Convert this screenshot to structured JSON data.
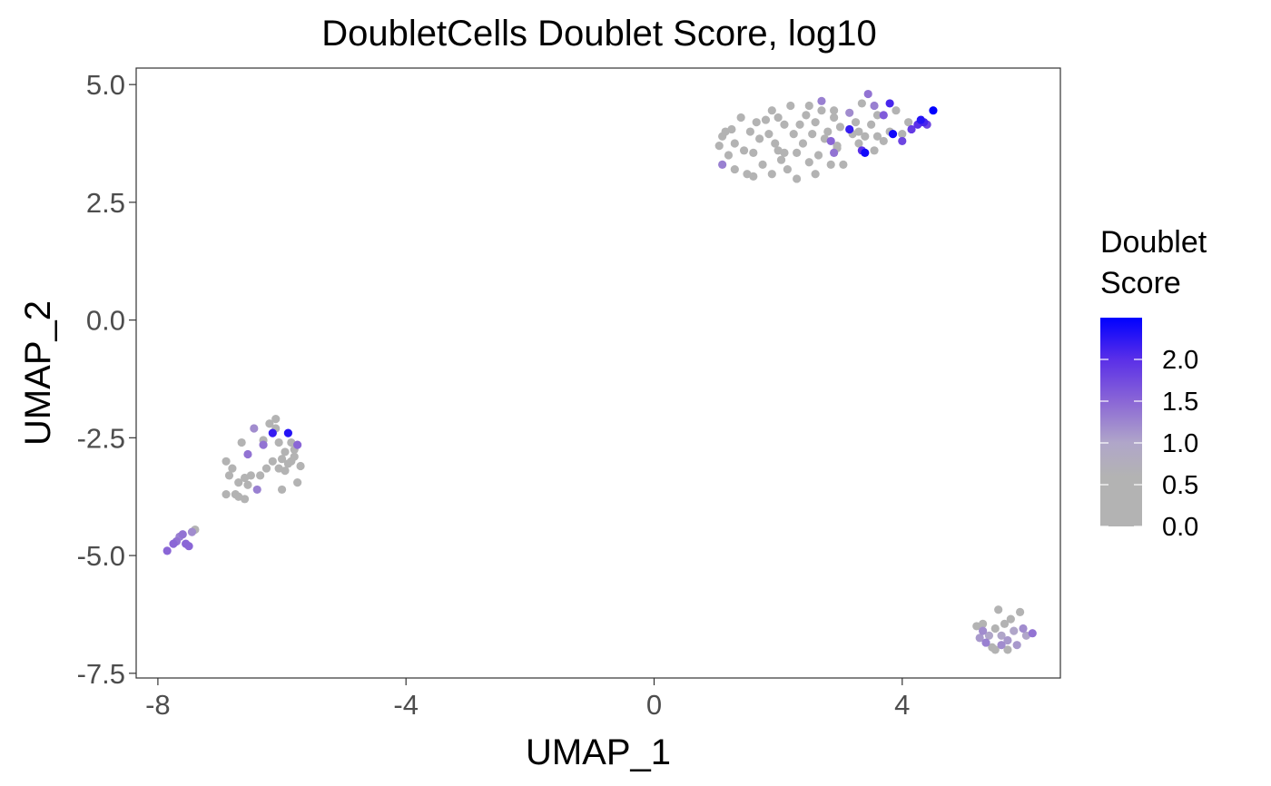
{
  "chart_data": {
    "type": "scatter",
    "title": "DoubletCells Doublet Score, log10",
    "xlabel": "UMAP_1",
    "ylabel": "UMAP_2",
    "xlim": [
      -8.35,
      6.55
    ],
    "ylim": [
      -7.6,
      5.35
    ],
    "x_ticks": [
      -8,
      -4,
      0,
      4
    ],
    "x_tick_labels": [
      "-8",
      "-4",
      "0",
      "4"
    ],
    "y_ticks": [
      5.0,
      2.5,
      0.0,
      -2.5,
      -5.0,
      -7.5
    ],
    "y_tick_labels": [
      "5.0",
      "2.5",
      "0.0",
      "-2.5",
      "-5.0",
      "-7.5"
    ],
    "grid": false,
    "legend": {
      "title": "Doublet Score",
      "title_lines": [
        "Doublet",
        "Score"
      ],
      "position": "right",
      "range": [
        0,
        2.5
      ],
      "ticks": [
        2.0,
        1.5,
        1.0,
        0.5,
        0.0
      ],
      "tick_labels": [
        "2.0",
        "1.5",
        "1.0",
        "0.5",
        "0.0"
      ],
      "color_low": "#b3b3b3",
      "color_high": "#0000ff",
      "gradient_stops": [
        {
          "value": 0.0,
          "color": "#b3b3b3"
        },
        {
          "value": 0.6,
          "color": "#b3b3b3"
        },
        {
          "value": 1.0,
          "color": "#b0a6c9"
        },
        {
          "value": 1.5,
          "color": "#8a66d6"
        },
        {
          "value": 2.0,
          "color": "#5a2fe8"
        },
        {
          "value": 2.5,
          "color": "#0000ff"
        }
      ]
    },
    "points": [
      {
        "x": 1.05,
        "y": 3.7,
        "score": 0.3
      },
      {
        "x": 1.1,
        "y": 3.9,
        "score": 0.3
      },
      {
        "x": 1.15,
        "y": 4.0,
        "score": 0.3
      },
      {
        "x": 1.2,
        "y": 3.5,
        "score": 0.3
      },
      {
        "x": 1.1,
        "y": 3.3,
        "score": 1.3
      },
      {
        "x": 1.3,
        "y": 3.75,
        "score": 0.3
      },
      {
        "x": 1.4,
        "y": 4.3,
        "score": 0.3
      },
      {
        "x": 1.45,
        "y": 3.6,
        "score": 0.3
      },
      {
        "x": 1.5,
        "y": 3.1,
        "score": 0.3
      },
      {
        "x": 1.55,
        "y": 4.0,
        "score": 0.3
      },
      {
        "x": 1.6,
        "y": 3.55,
        "score": 0.3
      },
      {
        "x": 1.65,
        "y": 4.2,
        "score": 0.3
      },
      {
        "x": 1.7,
        "y": 3.85,
        "score": 0.3
      },
      {
        "x": 1.75,
        "y": 3.3,
        "score": 0.3
      },
      {
        "x": 1.8,
        "y": 4.25,
        "score": 0.3
      },
      {
        "x": 1.85,
        "y": 3.95,
        "score": 0.3
      },
      {
        "x": 1.9,
        "y": 3.1,
        "score": 0.3
      },
      {
        "x": 1.95,
        "y": 3.75,
        "score": 0.3
      },
      {
        "x": 2.0,
        "y": 4.3,
        "score": 0.3
      },
      {
        "x": 2.05,
        "y": 3.4,
        "score": 0.3
      },
      {
        "x": 2.1,
        "y": 4.15,
        "score": 0.3
      },
      {
        "x": 2.15,
        "y": 3.2,
        "score": 0.3
      },
      {
        "x": 2.2,
        "y": 4.55,
        "score": 0.3
      },
      {
        "x": 2.25,
        "y": 3.95,
        "score": 0.3
      },
      {
        "x": 2.3,
        "y": 3.55,
        "score": 0.3
      },
      {
        "x": 2.35,
        "y": 4.15,
        "score": 0.3
      },
      {
        "x": 2.4,
        "y": 3.75,
        "score": 0.3
      },
      {
        "x": 2.45,
        "y": 4.35,
        "score": 0.3
      },
      {
        "x": 2.5,
        "y": 3.35,
        "score": 0.3
      },
      {
        "x": 2.55,
        "y": 3.95,
        "score": 0.3
      },
      {
        "x": 2.6,
        "y": 4.2,
        "score": 0.3
      },
      {
        "x": 2.65,
        "y": 3.5,
        "score": 0.3
      },
      {
        "x": 2.7,
        "y": 4.45,
        "score": 0.3
      },
      {
        "x": 2.75,
        "y": 3.85,
        "score": 0.3
      },
      {
        "x": 2.8,
        "y": 4.0,
        "score": 0.3
      },
      {
        "x": 2.85,
        "y": 3.3,
        "score": 0.3
      },
      {
        "x": 2.9,
        "y": 4.3,
        "score": 0.3
      },
      {
        "x": 2.95,
        "y": 3.65,
        "score": 0.3
      },
      {
        "x": 3.0,
        "y": 4.1,
        "score": 0.3
      },
      {
        "x": 3.05,
        "y": 3.3,
        "score": 0.3
      },
      {
        "x": 3.15,
        "y": 4.4,
        "score": 1.2
      },
      {
        "x": 3.2,
        "y": 3.95,
        "score": 0.3
      },
      {
        "x": 3.25,
        "y": 4.2,
        "score": 0.3
      },
      {
        "x": 3.3,
        "y": 3.75,
        "score": 0.3
      },
      {
        "x": 3.35,
        "y": 4.6,
        "score": 0.3
      },
      {
        "x": 3.4,
        "y": 3.9,
        "score": 0.3
      },
      {
        "x": 3.5,
        "y": 4.15,
        "score": 0.3
      },
      {
        "x": 3.55,
        "y": 3.6,
        "score": 0.3
      },
      {
        "x": 3.6,
        "y": 4.35,
        "score": 0.3
      },
      {
        "x": 3.7,
        "y": 3.8,
        "score": 0.3
      },
      {
        "x": 3.8,
        "y": 4.0,
        "score": 0.3
      },
      {
        "x": 3.9,
        "y": 4.45,
        "score": 0.3
      },
      {
        "x": 4.0,
        "y": 3.95,
        "score": 0.3
      },
      {
        "x": 4.1,
        "y": 4.2,
        "score": 0.3
      },
      {
        "x": 1.3,
        "y": 3.2,
        "score": 0.3
      },
      {
        "x": 1.6,
        "y": 3.05,
        "score": 0.3
      },
      {
        "x": 2.0,
        "y": 3.6,
        "score": 0.3
      },
      {
        "x": 2.3,
        "y": 3.0,
        "score": 0.3
      },
      {
        "x": 1.9,
        "y": 4.45,
        "score": 0.3
      },
      {
        "x": 2.6,
        "y": 3.1,
        "score": 0.3
      },
      {
        "x": 2.5,
        "y": 4.55,
        "score": 0.3
      },
      {
        "x": 1.25,
        "y": 4.05,
        "score": 0.3
      },
      {
        "x": 2.85,
        "y": 3.8,
        "score": 1.5
      },
      {
        "x": 2.9,
        "y": 3.55,
        "score": 1.4
      },
      {
        "x": 3.15,
        "y": 4.05,
        "score": 2.2
      },
      {
        "x": 3.35,
        "y": 3.6,
        "score": 2.0
      },
      {
        "x": 3.4,
        "y": 3.55,
        "score": 2.4
      },
      {
        "x": 3.45,
        "y": 4.8,
        "score": 1.4
      },
      {
        "x": 3.55,
        "y": 4.55,
        "score": 1.3
      },
      {
        "x": 3.7,
        "y": 4.35,
        "score": 1.6
      },
      {
        "x": 3.8,
        "y": 4.6,
        "score": 2.1
      },
      {
        "x": 3.85,
        "y": 3.95,
        "score": 2.4
      },
      {
        "x": 4.0,
        "y": 3.8,
        "score": 1.8
      },
      {
        "x": 4.15,
        "y": 4.05,
        "score": 1.9
      },
      {
        "x": 4.25,
        "y": 4.15,
        "score": 2.0
      },
      {
        "x": 4.3,
        "y": 4.25,
        "score": 2.3
      },
      {
        "x": 4.35,
        "y": 4.2,
        "score": 2.1
      },
      {
        "x": 4.4,
        "y": 4.15,
        "score": 1.8
      },
      {
        "x": 4.5,
        "y": 4.45,
        "score": 2.5
      },
      {
        "x": 4.3,
        "y": 4.2,
        "score": 1.6
      },
      {
        "x": 3.3,
        "y": 4.0,
        "score": 0.3
      },
      {
        "x": 2.9,
        "y": 4.45,
        "score": 0.3
      },
      {
        "x": 3.6,
        "y": 3.9,
        "score": 0.3
      },
      {
        "x": 2.7,
        "y": 4.65,
        "score": 1.3
      },
      {
        "x": 2.95,
        "y": 3.7,
        "score": 0.3
      },
      {
        "x": 2.1,
        "y": 3.55,
        "score": 0.3
      },
      {
        "x": -7.85,
        "y": -4.9,
        "score": 1.5
      },
      {
        "x": -7.75,
        "y": -4.75,
        "score": 1.5
      },
      {
        "x": -7.7,
        "y": -4.7,
        "score": 1.4
      },
      {
        "x": -7.65,
        "y": -4.6,
        "score": 1.3
      },
      {
        "x": -7.6,
        "y": -4.55,
        "score": 1.4
      },
      {
        "x": -7.55,
        "y": -4.75,
        "score": 1.5
      },
      {
        "x": -7.5,
        "y": -4.8,
        "score": 1.5
      },
      {
        "x": -7.45,
        "y": -4.5,
        "score": 1.2
      },
      {
        "x": -7.4,
        "y": -4.45,
        "score": 0.5
      },
      {
        "x": -6.9,
        "y": -3.0,
        "score": 0.3
      },
      {
        "x": -6.85,
        "y": -3.3,
        "score": 0.3
      },
      {
        "x": -6.8,
        "y": -3.15,
        "score": 0.3
      },
      {
        "x": -6.75,
        "y": -3.7,
        "score": 0.3
      },
      {
        "x": -6.7,
        "y": -3.45,
        "score": 0.3
      },
      {
        "x": -6.7,
        "y": -3.75,
        "score": 0.3
      },
      {
        "x": -6.65,
        "y": -2.6,
        "score": 0.3
      },
      {
        "x": -6.6,
        "y": -3.35,
        "score": 0.3
      },
      {
        "x": -6.55,
        "y": -2.85,
        "score": 1.4
      },
      {
        "x": -6.55,
        "y": -3.5,
        "score": 0.3
      },
      {
        "x": -6.5,
        "y": -3.3,
        "score": 0.3
      },
      {
        "x": -6.45,
        "y": -2.3,
        "score": 1.2
      },
      {
        "x": -6.4,
        "y": -3.6,
        "score": 1.3
      },
      {
        "x": -6.35,
        "y": -3.3,
        "score": 0.3
      },
      {
        "x": -6.3,
        "y": -2.65,
        "score": 1.4
      },
      {
        "x": -6.3,
        "y": -2.55,
        "score": 0.3
      },
      {
        "x": -6.25,
        "y": -3.15,
        "score": 0.3
      },
      {
        "x": -6.2,
        "y": -2.2,
        "score": 0.3
      },
      {
        "x": -6.15,
        "y": -2.4,
        "score": 2.2
      },
      {
        "x": -6.15,
        "y": -3.0,
        "score": 0.3
      },
      {
        "x": -6.1,
        "y": -2.1,
        "score": 0.3
      },
      {
        "x": -6.1,
        "y": -2.3,
        "score": 0.3
      },
      {
        "x": -6.05,
        "y": -2.6,
        "score": 0.3
      },
      {
        "x": -6.05,
        "y": -3.15,
        "score": 0.3
      },
      {
        "x": -6.0,
        "y": -2.95,
        "score": 0.3
      },
      {
        "x": -5.95,
        "y": -2.8,
        "score": 0.3
      },
      {
        "x": -5.95,
        "y": -3.2,
        "score": 0.3
      },
      {
        "x": -5.9,
        "y": -2.4,
        "score": 2.3
      },
      {
        "x": -5.9,
        "y": -3.05,
        "score": 0.3
      },
      {
        "x": -5.85,
        "y": -2.6,
        "score": 0.3
      },
      {
        "x": -5.85,
        "y": -3.0,
        "score": 0.3
      },
      {
        "x": -5.8,
        "y": -2.9,
        "score": 0.3
      },
      {
        "x": -5.8,
        "y": -2.75,
        "score": 0.3
      },
      {
        "x": -5.75,
        "y": -2.65,
        "score": 1.5
      },
      {
        "x": -5.75,
        "y": -3.45,
        "score": 0.3
      },
      {
        "x": -5.7,
        "y": -3.1,
        "score": 0.3
      },
      {
        "x": -6.9,
        "y": -3.7,
        "score": 0.3
      },
      {
        "x": -6.6,
        "y": -3.8,
        "score": 0.3
      },
      {
        "x": -6.0,
        "y": -3.6,
        "score": 0.3
      },
      {
        "x": 5.2,
        "y": -6.5,
        "score": 0.3
      },
      {
        "x": 5.25,
        "y": -6.75,
        "score": 1.1
      },
      {
        "x": 5.3,
        "y": -6.6,
        "score": 1.2
      },
      {
        "x": 5.35,
        "y": -6.85,
        "score": 1.3
      },
      {
        "x": 5.4,
        "y": -6.7,
        "score": 1.0
      },
      {
        "x": 5.45,
        "y": -6.95,
        "score": 0.4
      },
      {
        "x": 5.5,
        "y": -6.55,
        "score": 0.3
      },
      {
        "x": 5.55,
        "y": -6.15,
        "score": 0.3
      },
      {
        "x": 5.6,
        "y": -6.7,
        "score": 1.0
      },
      {
        "x": 5.6,
        "y": -6.9,
        "score": 1.2
      },
      {
        "x": 5.65,
        "y": -6.45,
        "score": 0.3
      },
      {
        "x": 5.7,
        "y": -6.8,
        "score": 1.1
      },
      {
        "x": 5.75,
        "y": -6.35,
        "score": 0.3
      },
      {
        "x": 5.8,
        "y": -6.6,
        "score": 1.0
      },
      {
        "x": 5.85,
        "y": -6.9,
        "score": 1.1
      },
      {
        "x": 5.9,
        "y": -6.2,
        "score": 0.3
      },
      {
        "x": 5.95,
        "y": -6.55,
        "score": 1.2
      },
      {
        "x": 6.0,
        "y": -6.7,
        "score": 1.0
      },
      {
        "x": 6.1,
        "y": -6.65,
        "score": 1.4
      },
      {
        "x": 5.5,
        "y": -7.0,
        "score": 0.4
      },
      {
        "x": 5.3,
        "y": -6.45,
        "score": 0.3
      },
      {
        "x": 5.7,
        "y": -7.0,
        "score": 0.3
      }
    ]
  }
}
